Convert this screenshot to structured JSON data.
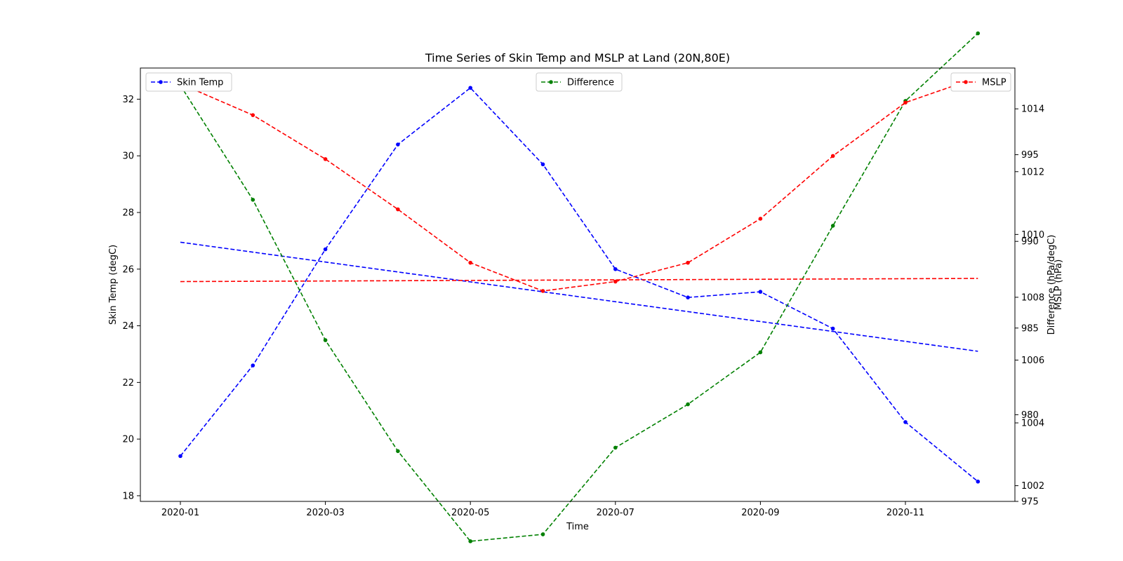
{
  "chart_data": {
    "type": "line",
    "title": "Time Series of Skin Temp and MSLP at Land (20N,80E)",
    "xlabel": "Time",
    "x": [
      "2020-01",
      "2020-02",
      "2020-03",
      "2020-04",
      "2020-05",
      "2020-06",
      "2020-07",
      "2020-08",
      "2020-09",
      "2020-10",
      "2020-11",
      "2020-12"
    ],
    "xticks": [
      "2020-01",
      "2020-03",
      "2020-05",
      "2020-07",
      "2020-09",
      "2020-11"
    ],
    "axes": {
      "skin_temp": {
        "label": "Skin Temp (degC)",
        "range": [
          17.8,
          33.1
        ],
        "ticks": [
          18,
          20,
          22,
          24,
          26,
          28,
          30,
          32
        ]
      },
      "difference": {
        "label": "Difference (hPa/degC)",
        "range": [
          975.0,
          1000.0
        ],
        "ticks": [
          975,
          980,
          985,
          990,
          995
        ]
      },
      "mslp": {
        "label": "MSLP (hPa)",
        "range": [
          1001.5,
          1015.3
        ],
        "ticks": [
          1002,
          1004,
          1006,
          1008,
          1010,
          1012,
          1014
        ]
      }
    },
    "series": [
      {
        "name": "Skin Temp",
        "axis": "skin_temp",
        "color": "#0000ff",
        "values": [
          19.4,
          22.6,
          26.7,
          30.4,
          32.4,
          29.7,
          26.0,
          25.0,
          25.2,
          23.9,
          20.6,
          18.5
        ],
        "trend": [
          26.95,
          23.1
        ]
      },
      {
        "name": "Difference",
        "axis": "difference",
        "color": "#008000",
        "values": [
          999.0,
          992.4,
          984.3,
          977.9,
          972.7,
          973.1,
          978.1,
          980.6,
          983.6,
          990.9,
          998.1,
          1002.0
        ]
      },
      {
        "name": "MSLP",
        "axis": "mslp",
        "color": "#ff0000",
        "values": [
          1014.8,
          1013.8,
          1012.4,
          1010.8,
          1009.1,
          1008.2,
          1008.5,
          1009.1,
          1010.5,
          1012.5,
          1014.2,
          1015.0
        ],
        "trend": [
          1008.5,
          1008.6
        ]
      }
    ],
    "legends": [
      {
        "label": "Skin Temp",
        "color": "#0000ff",
        "placement": "top-left"
      },
      {
        "label": "Difference",
        "color": "#008000",
        "placement": "top-center"
      },
      {
        "label": "MSLP",
        "color": "#ff0000",
        "placement": "top-right"
      }
    ],
    "grid": false
  }
}
